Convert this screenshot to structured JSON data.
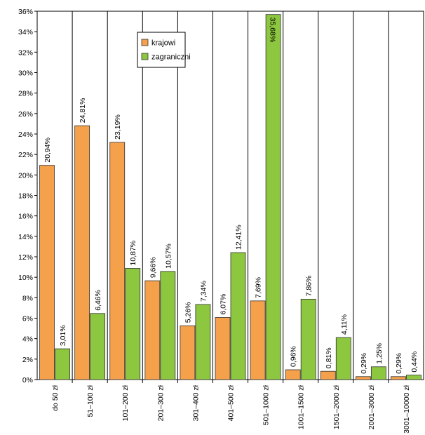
{
  "chart_data": {
    "type": "bar",
    "categories": [
      "do 50 zł",
      "51–100 zł",
      "101–200 zł",
      "201–300 zł",
      "301–400 zł",
      "401–500 zł",
      "501–1000 zł",
      "1001–1500 zł",
      "1501–2000 zł",
      "2001–3000 zł",
      "3001–10000 zł"
    ],
    "series": [
      {
        "name": "krajowi",
        "color": "#F5A04A",
        "values": [
          20.94,
          24.81,
          23.19,
          9.66,
          5.26,
          6.07,
          7.69,
          0.96,
          0.81,
          0.29,
          0.29
        ],
        "labels": [
          "20,94%",
          "24,81%",
          "23,19%",
          "9,66%",
          "5,26%",
          "6,07%",
          "7,69%",
          "0,96%",
          "0,81%",
          "0,29%",
          "0,29%"
        ]
      },
      {
        "name": "zagraniczni",
        "color": "#8DC63F",
        "values": [
          3.01,
          6.46,
          10.87,
          10.57,
          7.34,
          12.41,
          35.68,
          7.86,
          4.11,
          1.25,
          0.44
        ],
        "labels": [
          "3,01%",
          "6,46%",
          "10,87%",
          "10,57%",
          "7,34%",
          "12,41%",
          "35,68%",
          "7,86%",
          "4,11%",
          "1,25%",
          "0,44%"
        ]
      }
    ],
    "yticks": [
      "0%",
      "2%",
      "4%",
      "6%",
      "8%",
      "10%",
      "12%",
      "14%",
      "16%",
      "18%",
      "20%",
      "22%",
      "24%",
      "26%",
      "28%",
      "30%",
      "32%",
      "34%",
      "36%"
    ],
    "ylim": [
      0,
      36
    ],
    "grid": "vertical-category-separators",
    "legend_position": "top-left-inside"
  }
}
